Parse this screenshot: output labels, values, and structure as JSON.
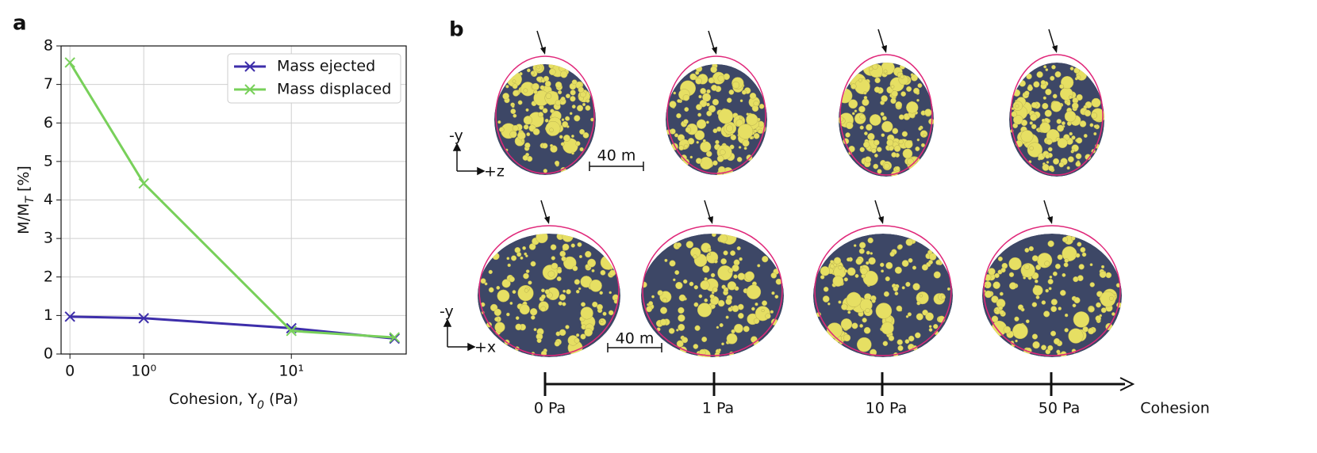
{
  "chart_data": {
    "type": "line",
    "x": [
      0,
      1,
      10,
      50
    ],
    "xlabel": "Cohesion, Y_0 (Pa)",
    "ylabel": "M/M_T [%]",
    "series": [
      {
        "name": "Mass ejected",
        "color": "#3d2eaa",
        "values": [
          0.97,
          0.93,
          0.67,
          0.4
        ]
      },
      {
        "name": "Mass displaced",
        "color": "#78d05a",
        "values": [
          7.57,
          4.43,
          0.6,
          0.43
        ]
      }
    ],
    "xscale": "symlog",
    "xlim": [
      -0.12,
      60
    ],
    "xticks": [
      0,
      {
        "value": 1,
        "label": "10⁰"
      },
      {
        "value": 10,
        "label": "10¹"
      }
    ],
    "ylim": [
      0,
      8
    ],
    "yticks": [
      0,
      1,
      2,
      3,
      4,
      5,
      6,
      7,
      8
    ],
    "grid": true,
    "legend": "upper right",
    "marker": "x"
  },
  "panel_labels": [
    "a",
    "b"
  ],
  "panel_b": {
    "axes_top": [
      "-y",
      "+z"
    ],
    "axes_bottom": [
      "-y",
      "+x"
    ],
    "scale_bars": [
      "40 m",
      "40 m"
    ],
    "cohesion_ticks": [
      "0 Pa",
      "1 Pa",
      "10 Pa",
      "50 Pa"
    ],
    "cohesion_label": "Cohesion"
  }
}
